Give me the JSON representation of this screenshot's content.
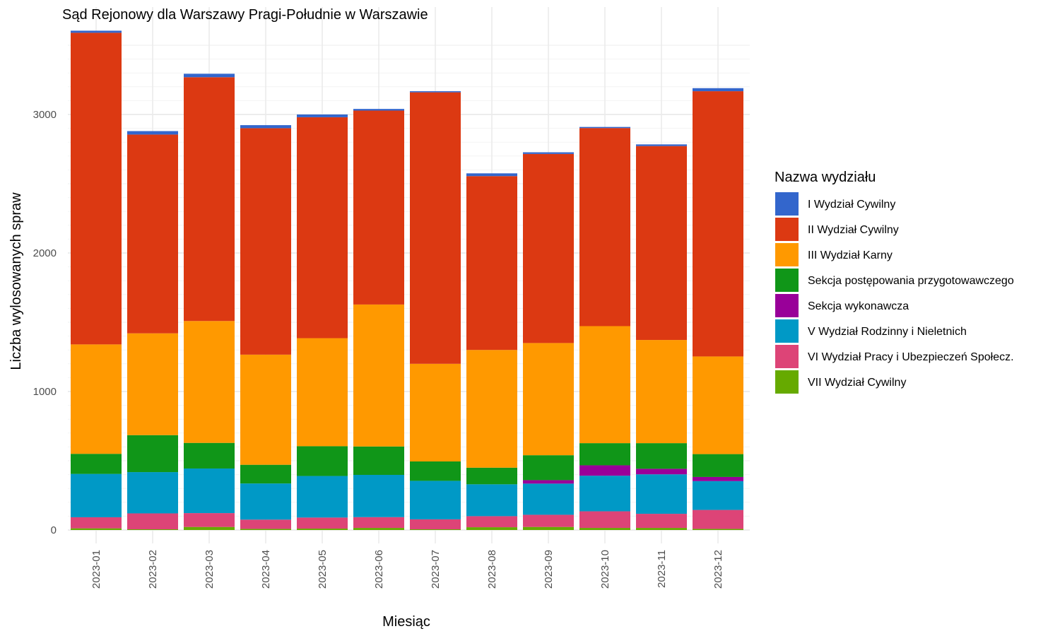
{
  "chart_data": {
    "type": "bar",
    "stacked": true,
    "title": "Sąd Rejonowy dla Warszawy Pragi-Południe w Warszawie",
    "xlabel": "Miesiąc",
    "ylabel": "Liczba wylosowanych spraw",
    "ylim": [
      0,
      3650
    ],
    "yticks": [
      0,
      1000,
      2000,
      3000
    ],
    "ytick_labels": [
      "0",
      "1000",
      "2000",
      "3000"
    ],
    "grid": true,
    "legend": {
      "title": "Nazwa wydziału",
      "position": "right"
    },
    "categories": [
      "2023-01",
      "2023-02",
      "2023-03",
      "2023-04",
      "2023-05",
      "2023-06",
      "2023-07",
      "2023-08",
      "2023-09",
      "2023-10",
      "2023-11",
      "2023-12"
    ],
    "series": [
      {
        "name": "VII Wydział Cywilny",
        "color": "#66AA00",
        "values": [
          12,
          5,
          22,
          8,
          10,
          15,
          5,
          20,
          22,
          15,
          15,
          8
        ]
      },
      {
        "name": "VI Wydział Pracy i Ubezpieczeń Społecz.",
        "color": "#DD4477",
        "values": [
          80,
          115,
          100,
          67,
          80,
          78,
          72,
          80,
          88,
          120,
          102,
          137
        ]
      },
      {
        "name": "V Wydział Rodzinny i Nieletnich",
        "color": "#0099C6",
        "values": [
          313,
          298,
          322,
          261,
          300,
          305,
          278,
          230,
          225,
          257,
          285,
          208
        ]
      },
      {
        "name": "Sekcja wykonawcza",
        "color": "#990099",
        "values": [
          0,
          0,
          0,
          0,
          0,
          0,
          0,
          0,
          25,
          75,
          40,
          30
        ]
      },
      {
        "name": "Sekcja postępowania przygotowawczego",
        "color": "#109618",
        "values": [
          145,
          267,
          185,
          135,
          215,
          205,
          140,
          120,
          180,
          160,
          185,
          165
        ]
      },
      {
        "name": "III Wydział Karny",
        "color": "#FF9900",
        "values": [
          790,
          735,
          880,
          795,
          780,
          1025,
          705,
          850,
          810,
          845,
          745,
          705
        ]
      },
      {
        "name": "II Wydział Cywilny",
        "color": "#DC3912",
        "values": [
          2250,
          1435,
          1760,
          1635,
          1595,
          1400,
          1960,
          1255,
          1365,
          1430,
          1400,
          1915
        ]
      },
      {
        "name": "I Wydział Cywilny",
        "color": "#3366CC",
        "values": [
          15,
          25,
          25,
          22,
          20,
          12,
          8,
          20,
          12,
          8,
          12,
          22
        ]
      }
    ],
    "legend_order": [
      "I Wydział Cywilny",
      "II Wydział Cywilny",
      "III Wydział Karny",
      "Sekcja postępowania przygotowawczego",
      "Sekcja wykonawcza",
      "V Wydział Rodzinny i Nieletnich",
      "VI Wydział Pracy i Ubezpieczeń Społecz.",
      "VII Wydział Cywilny"
    ]
  }
}
